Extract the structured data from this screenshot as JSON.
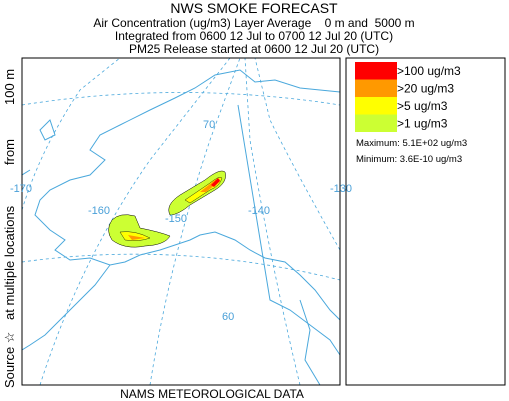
{
  "header": {
    "title": "NWS SMOKE FORECAST",
    "lines": [
      "Air Concentration (ug/m3) Layer Average    0 m and  5000 m",
      "Integrated from 0600 12 Jul to 0700 12 Jul 20 (UTC)",
      "PM25 Release started at 0600 12 Jul 20 (UTC)"
    ]
  },
  "side_label": {
    "parts": [
      "Source ☆",
      "at multiple locations",
      "from",
      "100 m"
    ]
  },
  "footer": "NAMS METEOROLOGICAL DATA",
  "legend": {
    "items": [
      {
        "label": ">100 ug/m3",
        "color": "#ff0000"
      },
      {
        "label": ">20 ug/m3",
        "color": "#ff9900"
      },
      {
        "label": ">5 ug/m3",
        "color": "#ffff00"
      },
      {
        "label": ">1 ug/m3",
        "color": "#ccff33"
      }
    ],
    "maximum": "Maximum: 5.1E+02 ug/m3",
    "minimum": "Minimum: 3.6E-10 ug/m3"
  },
  "map": {
    "labels": [
      "70",
      "-170",
      "-160",
      "-150",
      "-140",
      "-130",
      "60"
    ]
  }
}
